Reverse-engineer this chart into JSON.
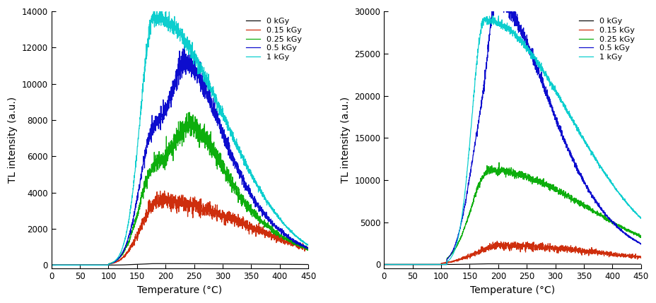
{
  "left_plot": {
    "xlabel": "Temperature (°C)",
    "ylabel": "TL intensity (a.u.)",
    "xlim": [
      0,
      450
    ],
    "ylim": [
      -200,
      14000
    ],
    "yticks": [
      0,
      2000,
      4000,
      6000,
      8000,
      10000,
      12000,
      14000
    ],
    "xticks": [
      0,
      50,
      100,
      150,
      200,
      250,
      300,
      350,
      400,
      450
    ],
    "curves": [
      {
        "label": "0 kGy",
        "color": "#000000",
        "peak_temp": 183,
        "peak_val": 80,
        "wl": 30,
        "wr": 200,
        "start": 50,
        "shoulder": false
      },
      {
        "label": "0.15 kGy",
        "color": "#cc2200",
        "peak_temp": 187,
        "peak_val": 3500,
        "wl": 30,
        "wr": 160,
        "start": 100,
        "shoulder": false
      },
      {
        "label": "0.25 kGy",
        "color": "#00aa00",
        "peak_temp": 183,
        "peak_val": 5500,
        "wl": 28,
        "wr": 140,
        "start": 100,
        "shoulder": true,
        "sh_temp": 245,
        "sh_val": 2800,
        "sh_wl": 25,
        "sh_wr": 50
      },
      {
        "label": "0.5 kGy",
        "color": "#0000cc",
        "peak_temp": 182,
        "peak_val": 7700,
        "wl": 26,
        "wr": 130,
        "start": 100,
        "shoulder": true,
        "sh_temp": 238,
        "sh_val": 4200,
        "sh_wl": 22,
        "sh_wr": 55
      },
      {
        "label": "1 kGy",
        "color": "#00cccc",
        "peak_temp": 180,
        "peak_val": 13700,
        "wl": 24,
        "wr": 120,
        "start": 100,
        "shoulder": false
      }
    ]
  },
  "right_plot": {
    "xlabel": "Temperature (°C)",
    "ylabel": "TL intensity (a.u.)",
    "xlim": [
      0,
      450
    ],
    "ylim": [
      -500,
      30000
    ],
    "yticks": [
      0,
      5000,
      10000,
      15000,
      20000,
      25000,
      30000
    ],
    "xticks": [
      0,
      50,
      100,
      150,
      200,
      250,
      300,
      350,
      400,
      450
    ],
    "curves": [
      {
        "label": "0 kGy",
        "color": "#000000",
        "peak_temp": 183,
        "peak_val": 80,
        "wl": 30,
        "wr": 200,
        "start": 50,
        "shoulder": false
      },
      {
        "label": "0.15 kGy",
        "color": "#cc2200",
        "peak_temp": 205,
        "peak_val": 2200,
        "wl": 45,
        "wr": 180,
        "start": 100,
        "shoulder": false
      },
      {
        "label": "0.25 kGy",
        "color": "#00aa00",
        "peak_temp": 185,
        "peak_val": 11200,
        "wl": 32,
        "wr": 170,
        "start": 110,
        "shoulder": false
      },
      {
        "label": "0.5 kGy",
        "color": "#0000cc",
        "peak_temp": 174,
        "peak_val": 16400,
        "wl": 25,
        "wr": 140,
        "start": 110,
        "shoulder": true,
        "sh_temp": 196,
        "sh_val": 15200,
        "sh_wl": 14,
        "sh_wr": 80
      },
      {
        "label": "1 kGy",
        "color": "#00cccc",
        "peak_temp": 176,
        "peak_val": 29000,
        "wl": 22,
        "wr": 150,
        "start": 110,
        "shoulder": false
      }
    ]
  },
  "figsize": [
    9.29,
    4.29
  ],
  "dpi": 100,
  "noise_seed": 42,
  "noise_amplitude": 80
}
